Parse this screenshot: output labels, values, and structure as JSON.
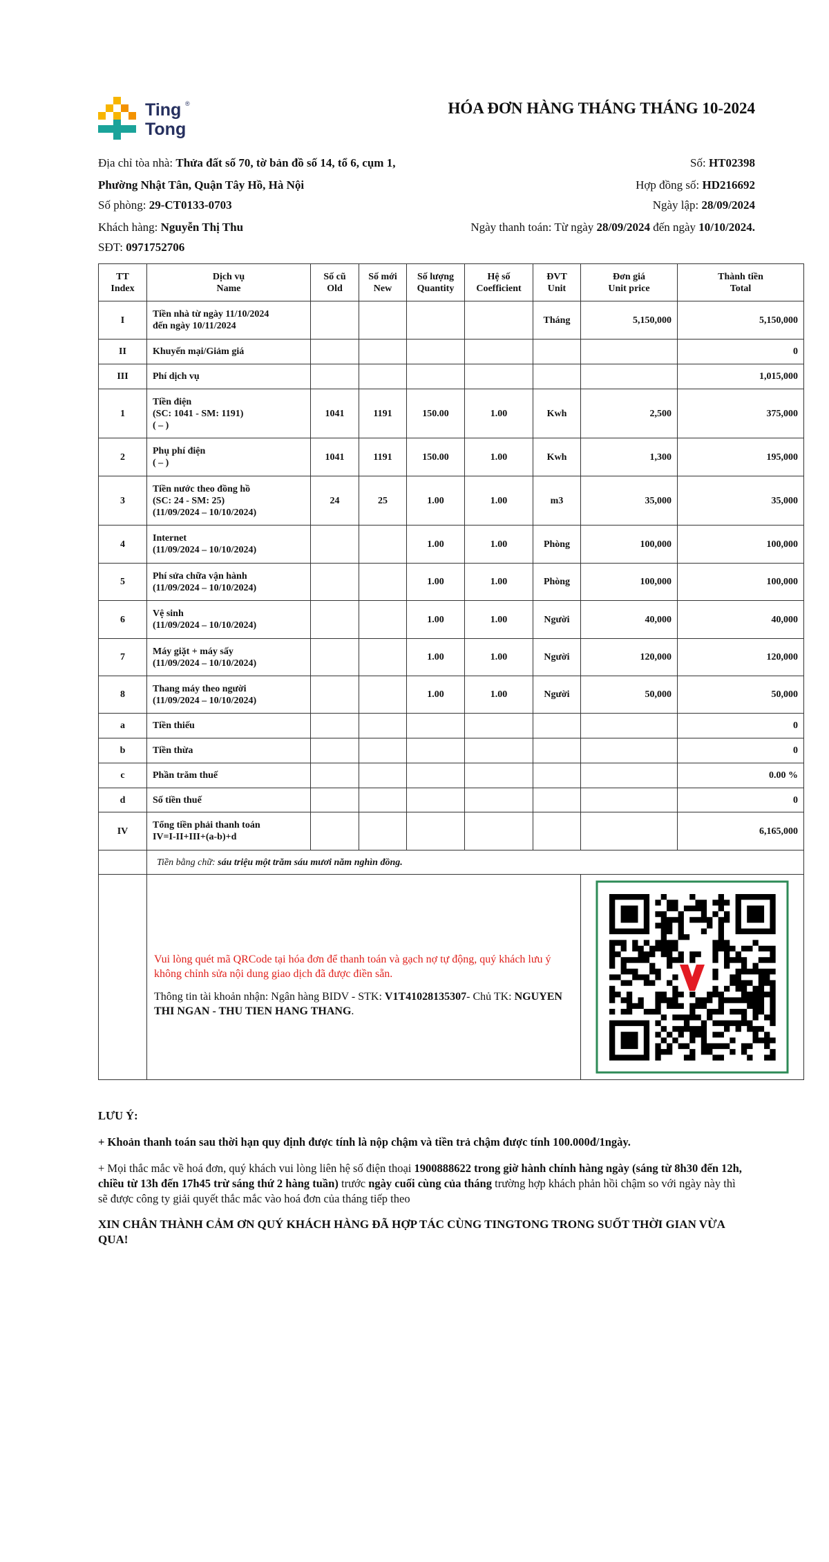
{
  "logo": {
    "lines": [
      "Ting",
      "Tong"
    ],
    "mark": "®"
  },
  "header": {
    "title": "HÓA ĐƠN HÀNG THÁNG THÁNG 10-2024"
  },
  "info_left": [
    {
      "segments": [
        {
          "text": "Địa chỉ tòa nhà: ",
          "bold": false
        },
        {
          "text": "Thửa đất số 70, tờ bản đồ số 14, tổ 6, cụm 1,",
          "bold": true
        }
      ]
    },
    {
      "segments": [
        {
          "text": "Phường Nhật Tân, Quận Tây Hồ, Hà Nội",
          "bold": true
        }
      ]
    },
    {
      "segments": [
        {
          "text": "Số phòng: ",
          "bold": false
        },
        {
          "text": "29-CT0133-0703",
          "bold": true
        }
      ]
    },
    {
      "segments": [
        {
          "text": "Khách hàng: ",
          "bold": false
        },
        {
          "text": "Nguyễn Thị Thu",
          "bold": true
        }
      ]
    },
    {
      "segments": [
        {
          "text": "SĐT: ",
          "bold": false
        },
        {
          "text": "0971752706",
          "bold": true
        }
      ]
    }
  ],
  "info_right": [
    {
      "segments": [
        {
          "text": "Số: ",
          "bold": false
        },
        {
          "text": "HT02398",
          "bold": true
        }
      ]
    },
    {
      "segments": [
        {
          "text": "Hợp đồng số: ",
          "bold": false
        },
        {
          "text": "HD216692",
          "bold": true
        }
      ]
    },
    {
      "segments": [
        {
          "text": "Ngày lập: ",
          "bold": false
        },
        {
          "text": "28/09/2024",
          "bold": true
        }
      ]
    },
    {
      "segments": [
        {
          "text": "Ngày thanh toán: Từ ngày ",
          "bold": false
        },
        {
          "text": "28/09/2024",
          "bold": true
        },
        {
          "text": " đến ngày ",
          "bold": false
        },
        {
          "text": "10/10/2024.",
          "bold": true
        }
      ]
    }
  ],
  "table": {
    "header": [
      [
        "TT",
        "Index"
      ],
      [
        "Dịch vụ",
        "Name"
      ],
      [
        "Số cũ",
        "Old"
      ],
      [
        "Số mới",
        "New"
      ],
      [
        "Số lượng",
        "Quantity"
      ],
      [
        "Hệ số",
        "Coefficient"
      ],
      [
        "ĐVT",
        "Unit"
      ],
      [
        "Đơn giá",
        "Unit price"
      ],
      [
        "Thành tiền",
        "Total"
      ]
    ],
    "rows": [
      {
        "idx": "I",
        "service": [
          "Tiền nhà từ ngày 11/10/2024",
          "đến ngày 10/11/2024"
        ],
        "unit": "Tháng",
        "price": "5,150,000",
        "total": "5,150,000"
      },
      {
        "idx": "II",
        "service": [
          "Khuyến mại/Giảm giá"
        ],
        "total": "0"
      },
      {
        "idx": "III",
        "service": [
          "Phí dịch vụ"
        ],
        "total": "1,015,000"
      },
      {
        "idx": "1",
        "service": [
          "Tiền điện",
          "(SC: 1041 - SM: 1191)",
          "( – )"
        ],
        "old": "1041",
        "new": "1191",
        "qty": "150.00",
        "coef": "1.00",
        "unit": "Kwh",
        "price": "2,500",
        "total": "375,000"
      },
      {
        "idx": "2",
        "service": [
          "Phụ phí điện",
          "( – )"
        ],
        "old": "1041",
        "new": "1191",
        "qty": "150.00",
        "coef": "1.00",
        "unit": "Kwh",
        "price": "1,300",
        "total": "195,000"
      },
      {
        "idx": "3",
        "service": [
          "Tiền nước theo đồng hồ",
          "(SC: 24 - SM: 25)",
          "(11/09/2024 – 10/10/2024)"
        ],
        "old": "24",
        "new": "25",
        "qty": "1.00",
        "coef": "1.00",
        "unit": "m3",
        "price": "35,000",
        "total": "35,000"
      },
      {
        "idx": "4",
        "service": [
          "Internet",
          "(11/09/2024 – 10/10/2024)"
        ],
        "qty": "1.00",
        "coef": "1.00",
        "unit": "Phòng",
        "price": "100,000",
        "total": "100,000"
      },
      {
        "idx": "5",
        "service": [
          "Phí sửa chữa vận hành",
          "(11/09/2024 – 10/10/2024)"
        ],
        "qty": "1.00",
        "coef": "1.00",
        "unit": "Phòng",
        "price": "100,000",
        "total": "100,000"
      },
      {
        "idx": "6",
        "service": [
          "Vệ sinh",
          "(11/09/2024 – 10/10/2024)"
        ],
        "qty": "1.00",
        "coef": "1.00",
        "unit": "Người",
        "price": "40,000",
        "total": "40,000"
      },
      {
        "idx": "7",
        "service": [
          "Máy giặt + máy sấy",
          "(11/09/2024 – 10/10/2024)"
        ],
        "qty": "1.00",
        "coef": "1.00",
        "unit": "Người",
        "price": "120,000",
        "total": "120,000"
      },
      {
        "idx": "8",
        "service": [
          "Thang máy theo người",
          "(11/09/2024 – 10/10/2024)"
        ],
        "qty": "1.00",
        "coef": "1.00",
        "unit": "Người",
        "price": "50,000",
        "total": "50,000"
      },
      {
        "idx": "a",
        "service": [
          "Tiền thiếu"
        ],
        "total": "0"
      },
      {
        "idx": "b",
        "service": [
          "Tiền thừa"
        ],
        "total": "0"
      },
      {
        "idx": "c",
        "service": [
          "Phần trăm thuế"
        ],
        "total": "0.00 %"
      },
      {
        "idx": "d",
        "service": [
          "Số tiền thuế"
        ],
        "total": "0"
      },
      {
        "idx": "IV",
        "service": [
          "Tổng tiền phải thanh toán",
          "IV=I-II+III+(a-b)+d"
        ],
        "total": "6,165,000"
      }
    ],
    "in_words": {
      "segments": [
        {
          "text": "Tiền bằng chữ: ",
          "bold": false
        },
        {
          "text": "sáu triệu một trăm sáu mươi năm nghìn đồng.",
          "bold": true
        }
      ]
    },
    "payment": {
      "notice": "Vui lòng quét mã QRCode tại hóa đơn để thanh toán và gạch nợ tự động, quý khách lưu ý không chỉnh sửa nội dung giao dịch đã được điền sẵn.",
      "account": {
        "segments": [
          {
            "text": "Thông tin tài khoản nhận: Ngân hàng BIDV - STK: ",
            "bold": false
          },
          {
            "text": "V1T41028135307",
            "bold": true
          },
          {
            "text": "- Chủ TK: ",
            "bold": false
          },
          {
            "text": "NGUYEN THI NGAN - THU TIEN HANG THANG",
            "bold": true
          },
          {
            "text": ".",
            "bold": false
          }
        ]
      }
    }
  },
  "notes": {
    "heading": "LƯU Ý:",
    "items": [
      {
        "segments": [
          {
            "text": "+ Khoản thanh toán sau thời hạn quy định được tính là nộp chậm và tiền trả chậm được tính 100.000đ/1ngày.",
            "bold": true
          }
        ]
      },
      {
        "segments": [
          {
            "text": "+ Mọi thắc mắc về hoá đơn, quý khách vui lòng liên hệ số điện thoại ",
            "bold": false
          },
          {
            "text": "1900888622 trong giờ hành chính hàng ngày (sáng từ 8h30 đến 12h, chiều từ 13h đến 17h45 trừ sáng thứ 2 hàng tuần)",
            "bold": true
          },
          {
            "text": " trước ",
            "bold": false
          },
          {
            "text": "ngày cuối cùng của tháng",
            "bold": true
          },
          {
            "text": " trường hợp khách phản hồi chậm so với ngày này thì sẽ được công ty giải quyết thắc mắc vào hoá đơn của tháng tiếp theo",
            "bold": false
          }
        ]
      }
    ],
    "thanks": "XIN CHÂN THÀNH CẢM ƠN QUÝ KHÁCH HÀNG ĐÃ HỢP TÁC CÙNG TINGTONG TRONG SUỐT THỜI GIAN VỪA QUA!"
  }
}
